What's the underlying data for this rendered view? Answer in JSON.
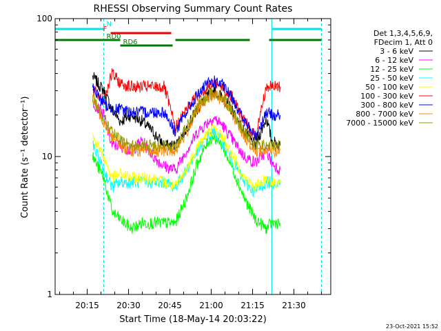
{
  "chart_data": {
    "type": "line",
    "title": "RHESSI Observing Summary Count Rates",
    "xlabel": "Start Time (18-May-14 20:03:22)",
    "ylabel": "Count Rate (s⁻¹ detector⁻¹)",
    "y_scale": "log",
    "ylim": [
      1,
      100
    ],
    "xlim": [
      "20:03:22",
      "21:43:22"
    ],
    "y_ticks": [
      "1",
      "10",
      "100"
    ],
    "x_ticks": [
      "20:15",
      "20:30",
      "20:45",
      "21:00",
      "21:15",
      "21:30"
    ],
    "legend_header": [
      "Det 1,3,4,5,6,9,",
      "FDecim 1, Att 0"
    ],
    "legend_position": "right",
    "timestamp": "23-Oct-2021 15:52",
    "flags": [
      {
        "name": "N",
        "color": "#00e5e5",
        "intervals": [
          [
            "20:03:22",
            "20:21:00"
          ],
          [
            "21:22:00",
            "21:40:00"
          ]
        ]
      },
      {
        "name": "F",
        "color": "#ee0000",
        "intervals": [
          [
            "20:23:30",
            "20:45:30"
          ]
        ]
      },
      {
        "name": "RD0",
        "color": "#007a00",
        "intervals": [
          [
            "20:03:22",
            "20:27:00"
          ],
          [
            "20:47:00",
            "21:14:00"
          ],
          [
            "21:21:00",
            "21:40:00"
          ]
        ]
      },
      {
        "name": "RD6",
        "color": "#007a00",
        "intervals": [
          [
            "20:27:00",
            "20:46:00"
          ]
        ]
      }
    ],
    "vertical_lines": [
      {
        "time": "20:03:22",
        "style": "solid",
        "color": "#00e5e5"
      },
      {
        "time": "20:21:00",
        "style": "dashed",
        "color": "#00e5e5"
      },
      {
        "time": "21:22:00",
        "style": "solid",
        "color": "#00e5e5"
      },
      {
        "time": "21:40:00",
        "style": "dashed",
        "color": "#00e5e5"
      }
    ],
    "x": [
      "20:17",
      "20:21",
      "20:24",
      "20:27",
      "20:31",
      "20:35",
      "20:39",
      "20:43",
      "20:47",
      "20:51",
      "20:55",
      "20:59",
      "21:01",
      "21:04",
      "21:08",
      "21:12",
      "21:16",
      "21:20",
      "21:22",
      "21:25"
    ],
    "series": [
      {
        "name": "3 - 6 keV",
        "color": "#000000",
        "values": [
          38,
          30,
          22,
          18,
          20,
          18,
          15,
          12,
          12,
          16,
          22,
          28,
          30,
          27,
          21,
          15,
          12,
          19,
          13,
          12
        ]
      },
      {
        "name": "6 - 12 keV",
        "color": "#ff00ff",
        "values": [
          25,
          20,
          12,
          12,
          11,
          13,
          10,
          8.5,
          8,
          11,
          15,
          18,
          19,
          17,
          13,
          10,
          9,
          11,
          9,
          8
        ]
      },
      {
        "name": "12 - 25 keV",
        "color": "#00ff00",
        "values": [
          10,
          7,
          4,
          3.5,
          3,
          3.3,
          3.3,
          3.3,
          3.3,
          5,
          9,
          13,
          14,
          12,
          8,
          5,
          3.5,
          3,
          3.3,
          3.3
        ]
      },
      {
        "name": "25 - 50 keV",
        "color": "#00ffff",
        "values": [
          12,
          8,
          6,
          6.5,
          6.5,
          6.5,
          6.5,
          6.5,
          6,
          8,
          11,
          14,
          15,
          13,
          9,
          6.5,
          5.5,
          6.5,
          6.5,
          6.5
        ]
      },
      {
        "name": "50 - 100 keV",
        "color": "#ffff00",
        "values": [
          14,
          10,
          7,
          7.5,
          7,
          7,
          7,
          6.5,
          6,
          8,
          12,
          15,
          16,
          14,
          10,
          7,
          6,
          7,
          6.5,
          6.5
        ]
      },
      {
        "name": "100 - 300 keV",
        "color": "#ff0000",
        "values": [
          30,
          26,
          40,
          34,
          32,
          32,
          32,
          32,
          16,
          22,
          28,
          32,
          34,
          32,
          26,
          18,
          14,
          32,
          32,
          32
        ]
      },
      {
        "name": "300 - 800 keV",
        "color": "#0000ff",
        "values": [
          32,
          24,
          22,
          22,
          21,
          21,
          21,
          21,
          15,
          21,
          28,
          34,
          35,
          33,
          26,
          18,
          14,
          21,
          20,
          20
        ]
      },
      {
        "name": "800 - 7000 keV",
        "color": "#ff8800",
        "values": [
          26,
          18,
          14,
          12,
          11,
          11,
          11,
          11,
          11,
          15,
          22,
          27,
          28,
          26,
          20,
          14,
          11,
          11,
          11,
          11
        ]
      },
      {
        "name": "7000 - 15000 keV",
        "color": "#999900",
        "values": [
          27,
          19,
          15,
          13,
          12,
          12,
          12,
          12,
          12,
          16,
          23,
          28,
          29,
          27,
          21,
          15,
          12,
          12,
          12,
          12
        ]
      }
    ]
  }
}
